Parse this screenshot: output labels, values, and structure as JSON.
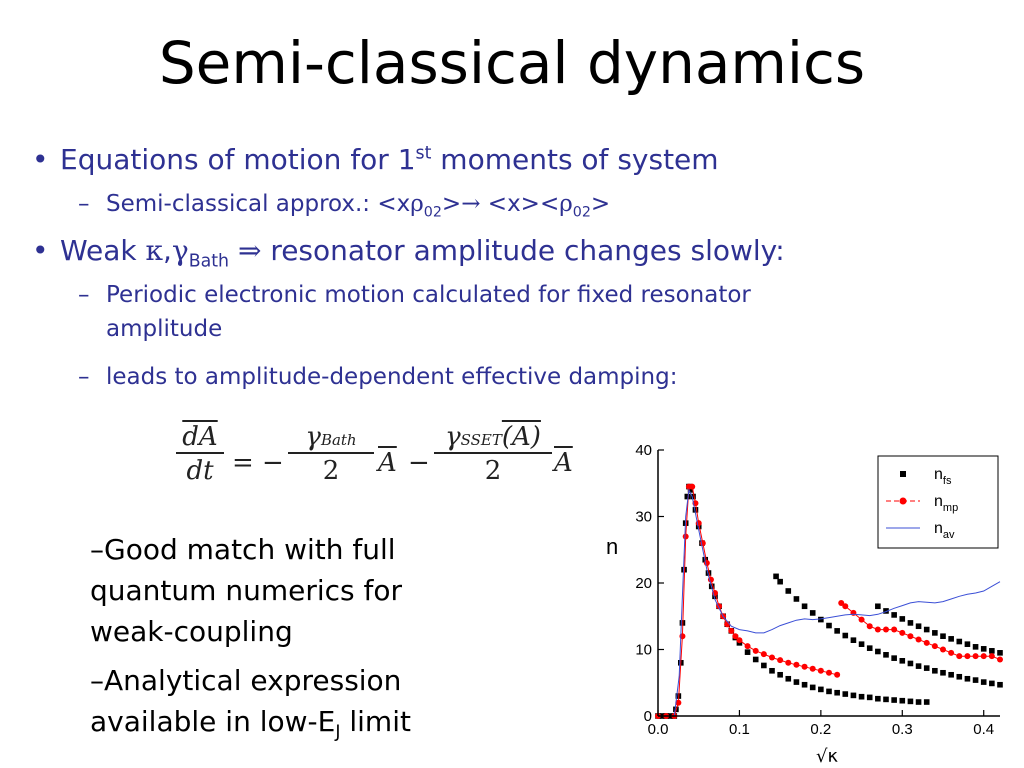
{
  "slide": {
    "title": "Semi-classical dynamics",
    "bullet1": {
      "text": "Equations of motion for 1",
      "sup": "st",
      "tail": " moments of system"
    },
    "sub1": {
      "lead": "Semi-classical approx.:  <x",
      "rho": "ρ",
      "sub_a": "02",
      "mid": ">",
      "arrow": "→",
      "mid2": " <x><",
      "rho2": "ρ",
      "sub_b": "02",
      "end": ">"
    },
    "bullet2": {
      "weak": "Weak ",
      "kappa": "κ",
      "comma": ",",
      "gamma": "γ",
      "bath": "Bath",
      "implies": " ⇒ ",
      "tail": "resonator amplitude changes slowly:"
    },
    "sub2a": {
      "line1": "Periodic electronic motion calculated for fixed resonator",
      "line2": "amplitude"
    },
    "sub2b": "leads to amplitude-dependent effective damping:",
    "equation": {
      "lhs_num": "dA",
      "lhs_den": "dt",
      "eq": "= −",
      "g1": "γ",
      "g1_sub": "Bath",
      "den1": "2",
      "A1": "A",
      "minus": "−",
      "g2": "γ",
      "g2_sub": "SSET",
      "g2_arg": "(A)",
      "den2": "2",
      "A2": "A"
    },
    "notes": {
      "n1a": "–Good match with full",
      "n1b": "quantum numerics for",
      "n1c": "weak-coupling",
      "n2a": "–Analytical expression",
      "n2b": "available in low-E",
      "n2b_sub": "J",
      "n2b_tail": " limit"
    },
    "dash": "–",
    "bullet": "•",
    "colors": {
      "bullet_text": "#2e3192",
      "fs": "#000000",
      "mp": "#ff0000",
      "av": "#3b4fd6"
    }
  },
  "chart_data": {
    "type": "scatter",
    "title": "",
    "xlabel": "√κ",
    "ylabel": "n",
    "xlim": [
      0,
      0.42
    ],
    "ylim": [
      0,
      40
    ],
    "xticks": [
      0.0,
      0.1,
      0.2,
      0.3,
      0.4
    ],
    "xtick_labels": [
      "0.0",
      "0.1",
      "0.2",
      "0.3",
      "0.4"
    ],
    "yticks": [
      0,
      10,
      20,
      30,
      40
    ],
    "ytick_labels": [
      "0",
      "10",
      "20",
      "30",
      "40"
    ],
    "legend_position": "top-right",
    "series": [
      {
        "name": "n_fs",
        "label_main": "n",
        "label_sub": "fs",
        "marker": "square",
        "color": "#000000",
        "segments": [
          [
            [
              0.0,
              0
            ],
            [
              0.005,
              0
            ],
            [
              0.01,
              0
            ],
            [
              0.015,
              0
            ],
            [
              0.02,
              0
            ],
            [
              0.022,
              1
            ],
            [
              0.025,
              3
            ],
            [
              0.028,
              8
            ],
            [
              0.03,
              14
            ],
            [
              0.032,
              22
            ],
            [
              0.034,
              29
            ],
            [
              0.036,
              33
            ],
            [
              0.038,
              34.5
            ],
            [
              0.04,
              34
            ],
            [
              0.043,
              33
            ],
            [
              0.046,
              31
            ],
            [
              0.05,
              28.5
            ],
            [
              0.054,
              26
            ],
            [
              0.058,
              23.5
            ],
            [
              0.062,
              21.5
            ],
            [
              0.066,
              19.5
            ],
            [
              0.07,
              18
            ],
            [
              0.075,
              16.5
            ],
            [
              0.08,
              15
            ],
            [
              0.085,
              13.8
            ],
            [
              0.09,
              12.8
            ],
            [
              0.095,
              11.8
            ],
            [
              0.1,
              11
            ],
            [
              0.11,
              9.6
            ],
            [
              0.12,
              8.5
            ],
            [
              0.13,
              7.6
            ],
            [
              0.14,
              6.8
            ],
            [
              0.15,
              6.2
            ],
            [
              0.16,
              5.6
            ],
            [
              0.17,
              5.1
            ],
            [
              0.18,
              4.7
            ],
            [
              0.19,
              4.3
            ],
            [
              0.2,
              4
            ],
            [
              0.21,
              3.7
            ],
            [
              0.22,
              3.5
            ],
            [
              0.23,
              3.3
            ],
            [
              0.24,
              3.1
            ],
            [
              0.25,
              2.9
            ],
            [
              0.26,
              2.8
            ],
            [
              0.27,
              2.6
            ],
            [
              0.28,
              2.5
            ],
            [
              0.29,
              2.4
            ],
            [
              0.3,
              2.3
            ],
            [
              0.31,
              2.2
            ],
            [
              0.32,
              2.1
            ],
            [
              0.33,
              2.1
            ]
          ],
          [
            [
              0.145,
              21
            ],
            [
              0.15,
              20.2
            ],
            [
              0.16,
              18.8
            ],
            [
              0.17,
              17.6
            ],
            [
              0.18,
              16.5
            ],
            [
              0.19,
              15.5
            ],
            [
              0.2,
              14.5
            ],
            [
              0.21,
              13.6
            ],
            [
              0.22,
              12.8
            ],
            [
              0.23,
              12.1
            ],
            [
              0.24,
              11.4
            ],
            [
              0.25,
              10.8
            ],
            [
              0.26,
              10.2
            ],
            [
              0.27,
              9.7
            ],
            [
              0.28,
              9.2
            ],
            [
              0.29,
              8.7
            ],
            [
              0.3,
              8.3
            ],
            [
              0.31,
              7.9
            ],
            [
              0.32,
              7.5
            ],
            [
              0.33,
              7.2
            ],
            [
              0.34,
              6.8
            ],
            [
              0.35,
              6.5
            ],
            [
              0.36,
              6.2
            ],
            [
              0.37,
              5.9
            ],
            [
              0.38,
              5.6
            ],
            [
              0.39,
              5.4
            ],
            [
              0.4,
              5.1
            ],
            [
              0.41,
              4.9
            ],
            [
              0.42,
              4.7
            ]
          ],
          [
            [
              0.27,
              16.5
            ],
            [
              0.28,
              15.8
            ],
            [
              0.29,
              15.2
            ],
            [
              0.3,
              14.6
            ],
            [
              0.31,
              14
            ],
            [
              0.32,
              13.5
            ],
            [
              0.33,
              13
            ],
            [
              0.34,
              12.5
            ],
            [
              0.35,
              12
            ],
            [
              0.36,
              11.6
            ],
            [
              0.37,
              11.2
            ],
            [
              0.38,
              10.8
            ],
            [
              0.39,
              10.4
            ],
            [
              0.4,
              10.1
            ],
            [
              0.41,
              9.8
            ],
            [
              0.42,
              9.5
            ]
          ]
        ]
      },
      {
        "name": "n_mp",
        "label_main": "n",
        "label_sub": "mp",
        "marker": "circle",
        "color": "#ff0000",
        "segments": [
          [
            [
              0.0,
              0
            ],
            [
              0.01,
              0
            ],
            [
              0.02,
              0
            ],
            [
              0.025,
              2
            ],
            [
              0.03,
              12
            ],
            [
              0.034,
              27
            ],
            [
              0.038,
              34.5
            ],
            [
              0.042,
              34.5
            ],
            [
              0.046,
              32
            ],
            [
              0.05,
              29
            ],
            [
              0.055,
              26
            ],
            [
              0.06,
              23
            ],
            [
              0.065,
              20.5
            ],
            [
              0.07,
              18.5
            ],
            [
              0.075,
              16.5
            ],
            [
              0.08,
              15
            ],
            [
              0.085,
              13.8
            ],
            [
              0.09,
              12.8
            ],
            [
              0.095,
              12
            ],
            [
              0.1,
              11.4
            ],
            [
              0.11,
              10.5
            ],
            [
              0.12,
              9.8
            ],
            [
              0.13,
              9.3
            ],
            [
              0.14,
              8.8
            ],
            [
              0.15,
              8.4
            ],
            [
              0.16,
              8
            ],
            [
              0.17,
              7.7
            ],
            [
              0.18,
              7.4
            ],
            [
              0.19,
              7.1
            ],
            [
              0.2,
              6.8
            ],
            [
              0.21,
              6.5
            ],
            [
              0.22,
              6.2
            ]
          ],
          [
            [
              0.225,
              17
            ],
            [
              0.23,
              16.5
            ],
            [
              0.24,
              15.5
            ],
            [
              0.25,
              14.5
            ],
            [
              0.26,
              13.5
            ],
            [
              0.27,
              13
            ],
            [
              0.28,
              13
            ],
            [
              0.29,
              13
            ],
            [
              0.3,
              12.5
            ],
            [
              0.31,
              12
            ],
            [
              0.32,
              11.5
            ],
            [
              0.33,
              11
            ],
            [
              0.34,
              10.5
            ],
            [
              0.35,
              10
            ],
            [
              0.36,
              9.5
            ],
            [
              0.37,
              9
            ],
            [
              0.38,
              9
            ],
            [
              0.39,
              9
            ],
            [
              0.4,
              9
            ],
            [
              0.41,
              9
            ],
            [
              0.42,
              8.5
            ]
          ]
        ]
      },
      {
        "name": "n_av",
        "label_main": "n",
        "label_sub": "av",
        "marker": "line",
        "color": "#3b4fd6",
        "segments": [
          [
            [
              0.0,
              0
            ],
            [
              0.02,
              0
            ],
            [
              0.026,
              6
            ],
            [
              0.03,
              18
            ],
            [
              0.034,
              30
            ],
            [
              0.038,
              34
            ],
            [
              0.042,
              33
            ],
            [
              0.05,
              28
            ],
            [
              0.06,
              22
            ],
            [
              0.07,
              17.5
            ],
            [
              0.08,
              15
            ],
            [
              0.09,
              13.5
            ],
            [
              0.1,
              13
            ],
            [
              0.11,
              12.8
            ],
            [
              0.12,
              12.5
            ],
            [
              0.13,
              12.5
            ],
            [
              0.14,
              13
            ],
            [
              0.15,
              13.6
            ],
            [
              0.16,
              14
            ],
            [
              0.17,
              14.4
            ],
            [
              0.18,
              14.6
            ],
            [
              0.19,
              14.5
            ],
            [
              0.2,
              14.6
            ],
            [
              0.21,
              14.8
            ],
            [
              0.22,
              15
            ],
            [
              0.23,
              15.2
            ],
            [
              0.24,
              15.3
            ],
            [
              0.25,
              15.2
            ],
            [
              0.26,
              15.1
            ],
            [
              0.27,
              15.3
            ],
            [
              0.28,
              15.7
            ],
            [
              0.29,
              16.2
            ],
            [
              0.3,
              16.6
            ],
            [
              0.31,
              17
            ],
            [
              0.32,
              17.2
            ],
            [
              0.33,
              17.1
            ],
            [
              0.34,
              17
            ],
            [
              0.35,
              17.2
            ],
            [
              0.36,
              17.6
            ],
            [
              0.37,
              18
            ],
            [
              0.38,
              18.3
            ],
            [
              0.39,
              18.5
            ],
            [
              0.4,
              18.8
            ],
            [
              0.41,
              19.5
            ],
            [
              0.42,
              20.2
            ]
          ]
        ]
      }
    ]
  }
}
